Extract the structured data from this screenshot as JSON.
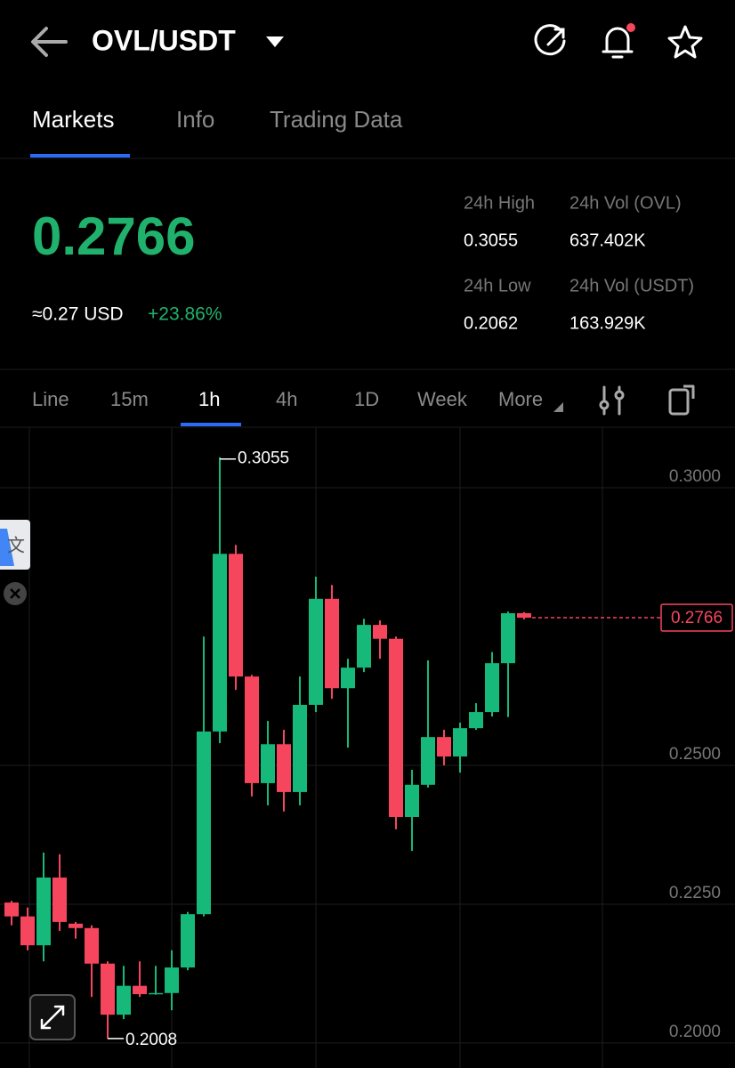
{
  "header": {
    "pair": "OVL/USDT"
  },
  "tabs": [
    "Markets",
    "Info",
    "Trading Data"
  ],
  "ticker": {
    "price": "0.2766",
    "usd": "≈0.27 USD",
    "change": "+23.86%",
    "stats": [
      {
        "label": "24h High",
        "value": "0.3055"
      },
      {
        "label": "24h Vol (OVL)",
        "value": "637.402K"
      },
      {
        "label": "24h Low",
        "value": "0.2062"
      },
      {
        "label": "24h Vol  (USDT)",
        "value": "163.929K"
      }
    ]
  },
  "intervals": [
    "Line",
    "15m",
    "1h",
    "4h",
    "1D",
    "Week",
    "More"
  ],
  "chart_data": {
    "type": "candlestick",
    "open": [
      0.2253,
      0.2228,
      0.2176,
      0.2298,
      0.2215,
      0.2207,
      0.2143,
      0.2051,
      0.2103,
      0.2088,
      0.209,
      0.2136,
      0.2232,
      0.2561,
      0.2881,
      0.266,
      0.2468,
      0.2538,
      0.2452,
      0.2609,
      0.28,
      0.2639,
      0.2676,
      0.2753,
      0.2728,
      0.2407,
      0.2465,
      0.2551,
      0.2516,
      0.2567,
      0.2596,
      0.2684,
      0.2774
    ],
    "high": [
      0.2256,
      0.2244,
      0.2343,
      0.234,
      0.2218,
      0.2212,
      0.2147,
      0.2139,
      0.2147,
      0.2139,
      0.2167,
      0.2236,
      0.2732,
      0.3055,
      0.2897,
      0.2663,
      0.258,
      0.2564,
      0.266,
      0.284,
      0.2825,
      0.2692,
      0.2764,
      0.2761,
      0.2732,
      0.2492,
      0.2689,
      0.2564,
      0.2577,
      0.2612,
      0.2704,
      0.2777,
      0.2776
    ],
    "low": [
      0.2212,
      0.2167,
      0.2147,
      0.2202,
      0.2188,
      0.2083,
      0.2008,
      0.2043,
      0.2083,
      0.2087,
      0.2059,
      0.2131,
      0.2228,
      0.254,
      0.2636,
      0.2444,
      0.2428,
      0.2417,
      0.2428,
      0.2596,
      0.262,
      0.2532,
      0.2668,
      0.2692,
      0.2385,
      0.2346,
      0.246,
      0.25,
      0.2487,
      0.2564,
      0.2588,
      0.2587,
      0.2763
    ],
    "close": [
      0.2228,
      0.2176,
      0.2298,
      0.2218,
      0.2207,
      0.2143,
      0.2051,
      0.2103,
      0.2088,
      0.209,
      0.2136,
      0.2232,
      0.2561,
      0.2881,
      0.266,
      0.2468,
      0.2538,
      0.2452,
      0.2609,
      0.28,
      0.2639,
      0.2676,
      0.2753,
      0.2728,
      0.2407,
      0.2465,
      0.2551,
      0.2516,
      0.2567,
      0.2596,
      0.2684,
      0.2774,
      0.2766
    ],
    "ylim": [
      0.1955,
      0.3109
    ],
    "yticks": [
      {
        "value": 0.3,
        "label": "0.3000"
      },
      {
        "value": 0.25,
        "label": "0.2500"
      },
      {
        "value": 0.225,
        "label": "0.2250"
      },
      {
        "value": 0.2,
        "label": "0.2000"
      }
    ],
    "up_color": "#16b979",
    "down_color": "#f6465d",
    "grid": true
  }
}
